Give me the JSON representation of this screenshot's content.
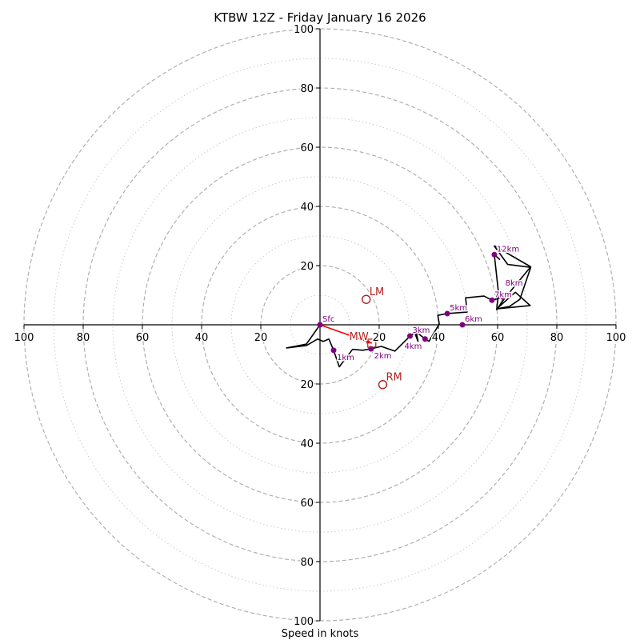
{
  "chart_data": {
    "type": "hodograph",
    "title": "KTBW 12Z - Friday January 16 2026",
    "xlabel": "Speed in knots",
    "units": "knots",
    "range": [
      -100,
      100
    ],
    "major_rings": [
      20,
      40,
      60,
      80,
      100
    ],
    "minor_rings": [
      10,
      30,
      50,
      70,
      90
    ],
    "x_tick_labels": [
      "100",
      "80",
      "60",
      "40",
      "20",
      "20",
      "40",
      "60",
      "80",
      "100"
    ],
    "x_tick_values": [
      -100,
      -80,
      -60,
      -40,
      -20,
      20,
      40,
      60,
      80,
      100
    ],
    "y_tick_labels": [
      "100",
      "80",
      "60",
      "40",
      "20",
      "20",
      "40",
      "60",
      "80",
      "100"
    ],
    "y_tick_values": [
      100,
      80,
      60,
      40,
      20,
      -20,
      -40,
      -60,
      -80,
      -100
    ],
    "grid": true,
    "colors": {
      "trace": "#000000",
      "height_markers": "#800080",
      "motion_markers": "#b22222",
      "shear_vector": "#ff0000",
      "ring_grid": "#b0b0b0"
    },
    "wind_trace": {
      "u": [
        0,
        -4.6,
        -11.3,
        -4.6,
        -0.8,
        1.1,
        3.0,
        4.6,
        6.5,
        11.0,
        14.5,
        17.2,
        20.7,
        25.3,
        30.4,
        32.0,
        33.1,
        32.5,
        35.5,
        36.8,
        40.3,
        39.8,
        43.0,
        49.7,
        49.2,
        55.4,
        58.1,
        61.8,
        63.4,
        60.0,
        71.0,
        66.0,
        59.7,
        64.0,
        67.5,
        71.2,
        63.4,
        58.9,
        59.1,
        71.2,
        62.1,
        59.7,
        60.3,
        58.9,
        60.8
      ],
      "v": [
        0,
        -6.5,
        -7.8,
        -7.0,
        -4.8,
        -5.6,
        -4.8,
        -8.6,
        -14.2,
        -8.3,
        -8.6,
        -8.1,
        -7.3,
        -8.9,
        -3.8,
        -2.7,
        -5.6,
        -2.4,
        -4.8,
        -5.6,
        0.3,
        3.2,
        3.8,
        4.3,
        9.1,
        9.7,
        8.3,
        9.4,
        11.0,
        5.4,
        6.5,
        11.0,
        5.4,
        6.2,
        8.6,
        19.4,
        20.4,
        26.6,
        26.6,
        19.6,
        8.6,
        5.1,
        10.8,
        23.7,
        22.0
      ]
    },
    "height_markers": [
      {
        "label": "Sfc",
        "u": 0,
        "v": 0
      },
      {
        "label": "1km",
        "u": 4.6,
        "v": -8.6
      },
      {
        "label": "2km",
        "u": 17.2,
        "v": -8.1
      },
      {
        "label": "3km",
        "u": 30.4,
        "v": -3.8
      },
      {
        "label": "4km",
        "u": 35.5,
        "v": -4.8
      },
      {
        "label": "5km",
        "u": 43.0,
        "v": 3.8
      },
      {
        "label": "6km",
        "u": 48.1,
        "v": 0.0
      },
      {
        "label": "7km",
        "u": 58.1,
        "v": 8.3
      },
      {
        "label": "8km",
        "u": 61.8,
        "v": 9.4
      },
      {
        "label": "12km",
        "u": 58.9,
        "v": 23.7
      }
    ],
    "storm_motions": [
      {
        "label": "LM",
        "u": 15.6,
        "v": 8.6,
        "marker": "circle"
      },
      {
        "label": "RM",
        "u": 21.2,
        "v": -20.2,
        "marker": "circle"
      },
      {
        "label": "MW",
        "u": 17.5,
        "v": -6.2,
        "marker": "square"
      }
    ],
    "shear_vector": {
      "from_u": 0,
      "from_v": 0,
      "to_u": 17.5,
      "to_v": -6.2
    }
  }
}
